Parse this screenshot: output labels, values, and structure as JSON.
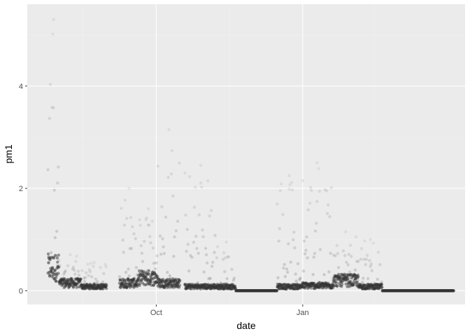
{
  "chart_data": {
    "type": "scatter",
    "title": "",
    "xlabel": "date",
    "ylabel": "pm1",
    "x_scale": "date",
    "x_ticks": [
      {
        "label": "Oct",
        "date": "2019-10-01"
      },
      {
        "label": "Jan",
        "date": "2020-01-01"
      }
    ],
    "y_ticks": [
      0,
      2,
      4
    ],
    "xlim": [
      "2019-07-12",
      "2020-04-12"
    ],
    "ylim": [
      -0.27,
      5.6
    ],
    "grid": true,
    "legend": "none",
    "point_color": "#333333",
    "background_color": "#ebebeb",
    "series": [
      {
        "values": [
          {
            "start": "2019-07-25",
            "end": "2019-08-01",
            "base": 0.45,
            "peak": 5.3
          },
          {
            "start": "2019-08-01",
            "end": "2019-08-15",
            "base": 0.15,
            "peak": 0.7
          },
          {
            "start": "2019-08-15",
            "end": "2019-08-31",
            "base": 0.08,
            "peak": 0.55
          },
          {
            "start": "2019-09-08",
            "end": "2019-09-20",
            "base": 0.15,
            "peak": 2.0
          },
          {
            "start": "2019-09-20",
            "end": "2019-10-02",
            "base": 0.25,
            "peak": 1.6
          },
          {
            "start": "2019-10-02",
            "end": "2019-10-16",
            "base": 0.15,
            "peak": 3.15
          },
          {
            "start": "2019-10-19",
            "end": "2019-11-08",
            "base": 0.08,
            "peak": 2.45
          },
          {
            "start": "2019-11-08",
            "end": "2019-11-20",
            "base": 0.08,
            "peak": 0.95
          },
          {
            "start": "2019-11-20",
            "end": "2019-12-16",
            "base": 0.0,
            "peak": 0.02
          },
          {
            "start": "2019-12-16",
            "end": "2019-12-31",
            "base": 0.08,
            "peak": 2.25
          },
          {
            "start": "2019-12-31",
            "end": "2020-01-20",
            "base": 0.1,
            "peak": 2.5
          },
          {
            "start": "2020-01-20",
            "end": "2020-02-05",
            "base": 0.2,
            "peak": 1.15
          },
          {
            "start": "2020-02-05",
            "end": "2020-02-20",
            "base": 0.08,
            "peak": 1.0
          },
          {
            "start": "2020-02-20",
            "end": "2020-04-05",
            "base": 0.0,
            "peak": 0.03
          }
        ]
      }
    ]
  }
}
